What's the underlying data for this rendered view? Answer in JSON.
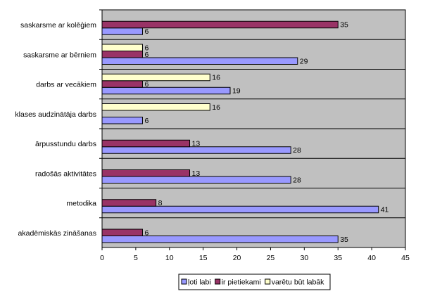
{
  "chart_data": {
    "type": "bar",
    "orientation": "horizontal",
    "categories": [
      "saskarsme ar kolēģiem",
      "saskarsme ar bērniem",
      "darbs ar vecākiem",
      "klases audzinātāja darbs",
      "ārpusstundu darbs",
      "radošās aktivitātes",
      "metodika",
      "akadēmiskās zināšanas"
    ],
    "series": [
      {
        "name": "ļoti labi",
        "color": "#9999ff",
        "values": [
          6,
          29,
          19,
          6,
          28,
          28,
          41,
          35
        ]
      },
      {
        "name": "ir pietiekami",
        "color": "#993366",
        "values": [
          35,
          6,
          6,
          null,
          13,
          13,
          8,
          6
        ]
      },
      {
        "name": "varētu būt labāk",
        "color": "#ffffcc",
        "values": [
          null,
          6,
          16,
          16,
          null,
          null,
          null,
          null
        ]
      }
    ],
    "xlim": [
      0,
      45
    ],
    "xticks": [
      0,
      5,
      10,
      15,
      20,
      25,
      30,
      35,
      40,
      45
    ],
    "plot_background": "#c0c0c0",
    "grid": "horizontal category separators",
    "legend_position": "bottom-center"
  }
}
